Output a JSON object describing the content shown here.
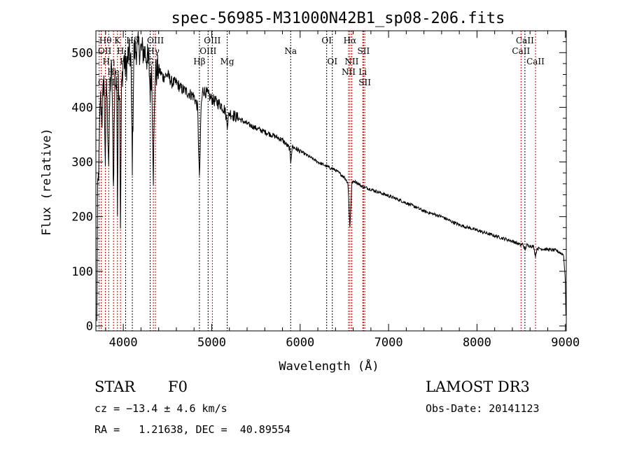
{
  "chart_data": {
    "type": "line",
    "title": "spec-56985-M31000N42B1_sp08-206.fits",
    "xlabel": "Wavelength (Å)",
    "ylabel": "Flux (relative)",
    "xlim": [
      3690,
      9010
    ],
    "ylim": [
      -9,
      540
    ],
    "x_ticks": [
      4000,
      5000,
      6000,
      7000,
      8000,
      9000
    ],
    "y_ticks": [
      0,
      100,
      200,
      300,
      400,
      500
    ],
    "grid": false,
    "series": [
      {
        "name": "spectrum",
        "color": "#000000",
        "points": [
          [
            3700,
            0
          ],
          [
            3710,
            240
          ],
          [
            3725,
            300
          ],
          [
            3740,
            420
          ],
          [
            3760,
            380
          ],
          [
            3780,
            460
          ],
          [
            3797,
            300
          ],
          [
            3810,
            450
          ],
          [
            3835,
            300
          ],
          [
            3850,
            440
          ],
          [
            3870,
            470
          ],
          [
            3889,
            250
          ],
          [
            3905,
            460
          ],
          [
            3925,
            430
          ],
          [
            3934,
            230
          ],
          [
            3945,
            450
          ],
          [
            3960,
            420
          ],
          [
            3968,
            160
          ],
          [
            3980,
            430
          ],
          [
            4000,
            490
          ],
          [
            4030,
            470
          ],
          [
            4060,
            500
          ],
          [
            4085,
            490
          ],
          [
            4102,
            300
          ],
          [
            4120,
            500
          ],
          [
            4160,
            510
          ],
          [
            4200,
            505
          ],
          [
            4250,
            500
          ],
          [
            4290,
            480
          ],
          [
            4304,
            430
          ],
          [
            4320,
            470
          ],
          [
            4340,
            280
          ],
          [
            4360,
            460
          ],
          [
            4400,
            470
          ],
          [
            4450,
            455
          ],
          [
            4500,
            460
          ],
          [
            4550,
            445
          ],
          [
            4600,
            445
          ],
          [
            4650,
            435
          ],
          [
            4700,
            430
          ],
          [
            4750,
            425
          ],
          [
            4800,
            420
          ],
          [
            4840,
            400
          ],
          [
            4861,
            265
          ],
          [
            4880,
            400
          ],
          [
            4900,
            432
          ],
          [
            4950,
            425
          ],
          [
            5000,
            415
          ],
          [
            5050,
            410
          ],
          [
            5100,
            405
          ],
          [
            5150,
            395
          ],
          [
            5175,
            370
          ],
          [
            5200,
            390
          ],
          [
            5300,
            380
          ],
          [
            5400,
            370
          ],
          [
            5500,
            362
          ],
          [
            5600,
            355
          ],
          [
            5700,
            348
          ],
          [
            5800,
            340
          ],
          [
            5880,
            325
          ],
          [
            5893,
            300
          ],
          [
            5910,
            328
          ],
          [
            6000,
            320
          ],
          [
            6100,
            310
          ],
          [
            6200,
            300
          ],
          [
            6300,
            292
          ],
          [
            6400,
            285
          ],
          [
            6500,
            272
          ],
          [
            6540,
            262
          ],
          [
            6563,
            180
          ],
          [
            6585,
            262
          ],
          [
            6620,
            265
          ],
          [
            6700,
            255
          ],
          [
            6800,
            250
          ],
          [
            6900,
            244
          ],
          [
            7000,
            238
          ],
          [
            7100,
            232
          ],
          [
            7200,
            225
          ],
          [
            7300,
            218
          ],
          [
            7400,
            210
          ],
          [
            7500,
            205
          ],
          [
            7600,
            200
          ],
          [
            7700,
            192
          ],
          [
            7800,
            185
          ],
          [
            7900,
            180
          ],
          [
            8000,
            175
          ],
          [
            8100,
            170
          ],
          [
            8200,
            165
          ],
          [
            8300,
            160
          ],
          [
            8400,
            155
          ],
          [
            8498,
            148
          ],
          [
            8520,
            150
          ],
          [
            8542,
            138
          ],
          [
            8560,
            148
          ],
          [
            8640,
            145
          ],
          [
            8662,
            128
          ],
          [
            8680,
            142
          ],
          [
            8800,
            140
          ],
          [
            8900,
            138
          ],
          [
            8980,
            130
          ],
          [
            9000,
            80
          ],
          [
            9005,
            20
          ]
        ]
      }
    ],
    "lines": [
      {
        "label": "Hθ",
        "wave": 3798,
        "row": 1,
        "color": "#c00000"
      },
      {
        "label": "K",
        "wave": 3934,
        "row": 1,
        "color": "#c00000"
      },
      {
        "label": "Hδ",
        "wave": 4102,
        "row": 1,
        "color": "#000000"
      },
      {
        "label": "OIII",
        "wave": 4363,
        "row": 1,
        "color": "#c00000"
      },
      {
        "label": "OIII",
        "wave": 5007,
        "row": 1,
        "color": "#c00000"
      },
      {
        "label": "OI",
        "wave": 6300,
        "row": 1,
        "color": "#000000"
      },
      {
        "label": "Hα",
        "wave": 6563,
        "row": 1,
        "color": "#c00000"
      },
      {
        "label": "SII",
        "wave": 6717,
        "row": 1,
        "color": "#c00000"
      },
      {
        "label": "CaII",
        "wave": 8542,
        "row": 1,
        "color": "#000000"
      },
      {
        "label": "OII",
        "wave": 3727,
        "row": 2,
        "color": "#c00000"
      },
      {
        "label": "Hη",
        "wave": 3835,
        "row": 2,
        "color": "#c00000"
      },
      {
        "label": "He",
        "wave": 3889,
        "row": 2,
        "color": "#c00000"
      },
      {
        "label": "H",
        "wave": 3968,
        "row": 2,
        "color": "#c00000"
      },
      {
        "label": "Hζ",
        "wave": 4026,
        "row": 2,
        "color": "#000000"
      },
      {
        "label": "Hγ",
        "wave": 4340,
        "row": 2,
        "color": "#c00000"
      },
      {
        "label": "OIII",
        "wave": 4959,
        "row": 2,
        "color": "#000000"
      },
      {
        "label": "Na",
        "wave": 5893,
        "row": 2,
        "color": "#000000"
      },
      {
        "label": "NII",
        "wave": 6583,
        "row": 2,
        "color": "#c00000"
      },
      {
        "label": "Li",
        "wave": 6708,
        "row": 2,
        "color": "#c00000"
      },
      {
        "label": "CaII",
        "wave": 8498,
        "row": 2,
        "color": "#c00000"
      },
      {
        "label": "OIII",
        "wave": 3750,
        "row": 3,
        "color": "#c00000"
      },
      {
        "label": "G",
        "wave": 4304,
        "row": 3,
        "color": "#000000"
      },
      {
        "label": "Hβ",
        "wave": 4861,
        "row": 3,
        "color": "#000000"
      },
      {
        "label": "Mg",
        "wave": 5175,
        "row": 3,
        "color": "#000000"
      },
      {
        "label": "OI",
        "wave": 6364,
        "row": 3,
        "color": "#000000"
      },
      {
        "label": "NII",
        "wave": 6548,
        "row": 3,
        "color": "#c00000"
      },
      {
        "label": "SII",
        "wave": 6731,
        "row": 3,
        "color": "#c00000"
      },
      {
        "label": "CaII",
        "wave": 8662,
        "row": 3,
        "color": "#c00000"
      }
    ]
  },
  "info": {
    "class": "STAR",
    "subclass": "F0",
    "survey": "LAMOST DR3",
    "cz": "cz = −13.4 ± 4.6 km/s",
    "obs_date": "Obs-Date: 20141123",
    "radec": "RA =   1.21638, DEC =  40.89554"
  }
}
